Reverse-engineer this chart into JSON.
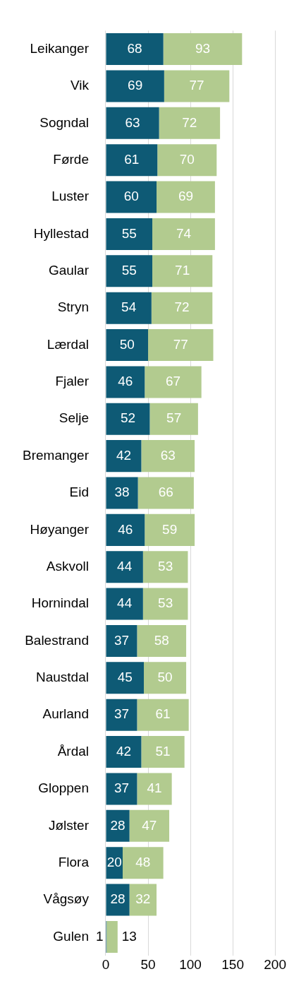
{
  "chart_data": {
    "type": "bar",
    "orientation": "horizontal",
    "stacked": true,
    "categories": [
      "Leikanger",
      "Vik",
      "Sogndal",
      "Førde",
      "Luster",
      "Hyllestad",
      "Gaular",
      "Stryn",
      "Lærdal",
      "Fjaler",
      "Selje",
      "Bremanger",
      "Eid",
      "Høyanger",
      "Askvoll",
      "Hornindal",
      "Balestrand",
      "Naustdal",
      "Aurland",
      "Årdal",
      "Gloppen",
      "Jølster",
      "Flora",
      "Vågsøy",
      "Gulen"
    ],
    "series": [
      {
        "color": "#0e5a75",
        "values": [
          68,
          69,
          63,
          61,
          60,
          55,
          55,
          54,
          50,
          46,
          52,
          42,
          38,
          46,
          44,
          44,
          37,
          45,
          37,
          42,
          37,
          28,
          20,
          28,
          1
        ]
      },
      {
        "color": "#b2cb8f",
        "values": [
          93,
          77,
          72,
          70,
          69,
          74,
          71,
          72,
          77,
          67,
          57,
          63,
          66,
          59,
          53,
          53,
          58,
          50,
          61,
          51,
          41,
          47,
          48,
          32,
          13
        ]
      }
    ],
    "xlim": [
      0,
      200
    ],
    "xticks": [
      0,
      50,
      100,
      150,
      200
    ],
    "grid": "x",
    "legend": false,
    "data_labels": true
  }
}
